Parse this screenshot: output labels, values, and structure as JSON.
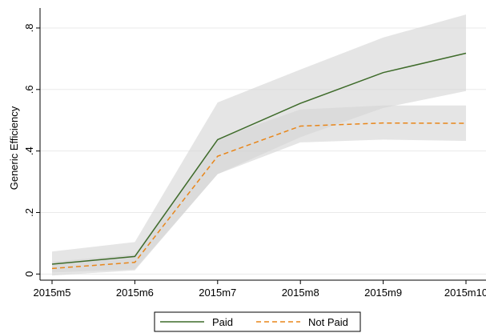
{
  "chart_data": {
    "type": "line",
    "y_label": "Generic Efficiency",
    "categories": [
      "2015m5",
      "2015m6",
      "2015m7",
      "2015m8",
      "2015m9",
      "2015m10"
    ],
    "series": [
      {
        "name": "Paid",
        "color": "#3e6b2a",
        "dash": "none",
        "values": [
          0.032,
          0.057,
          0.437,
          0.555,
          0.655,
          0.718
        ],
        "ci_lower": [
          0.005,
          0.015,
          0.325,
          0.445,
          0.54,
          0.595
        ],
        "ci_upper": [
          0.073,
          0.104,
          0.558,
          0.665,
          0.769,
          0.844
        ]
      },
      {
        "name": "Not Paid",
        "color": "#e8861a",
        "dash": "6,4",
        "values": [
          0.018,
          0.038,
          0.383,
          0.481,
          0.491,
          0.49
        ],
        "ci_lower": [
          -0.005,
          0.012,
          0.325,
          0.428,
          0.437,
          0.433
        ],
        "ci_upper": [
          0.04,
          0.064,
          0.44,
          0.535,
          0.548,
          0.548
        ]
      }
    ],
    "band_color": "#d4d4d4",
    "ylim": [
      -0.02,
      0.865
    ],
    "yticks": [
      0,
      {
        "value": 0.2,
        "label": ".2"
      },
      {
        "value": 0.4,
        "label": ".4"
      },
      {
        "value": 0.6,
        "label": ".6"
      },
      {
        "value": 0.8,
        "label": ".8"
      }
    ],
    "grid": true,
    "legend": "bottom"
  }
}
